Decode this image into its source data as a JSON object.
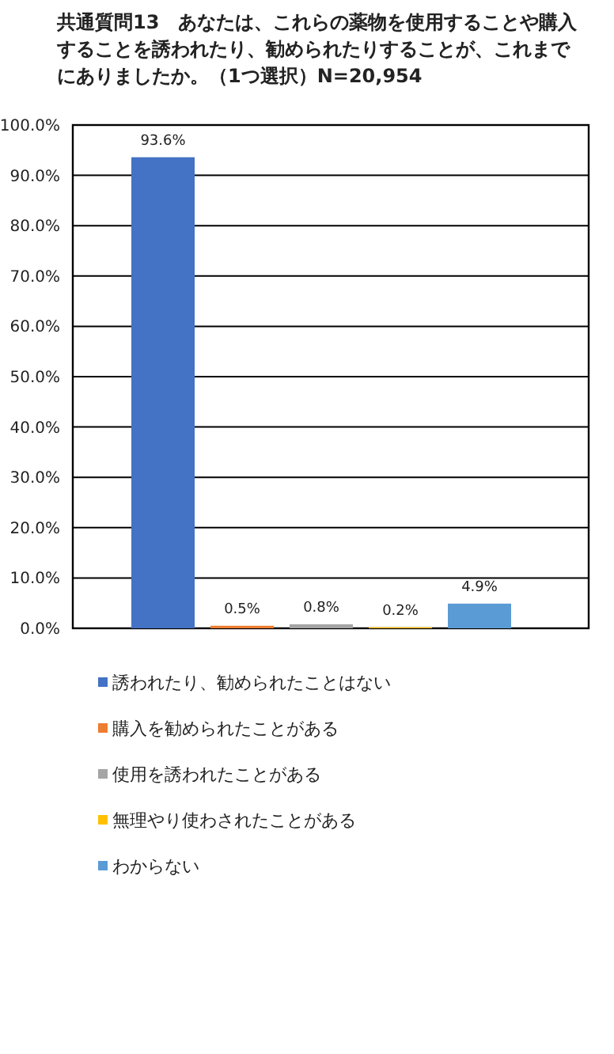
{
  "chart_data": {
    "type": "bar",
    "title": "共通質問13　あなたは、これらの薬物を使用することや購入することを誘われたり、勧められたりすることが、これまでにありましたか。（1つ選択）N=20,954",
    "categories": [
      null
    ],
    "series": [
      {
        "name": "誘われたり、勧められたことはない",
        "color": "#4472c4",
        "values": [
          93.6
        ]
      },
      {
        "name": "購入を勧められたことがある",
        "color": "#ed7d31",
        "values": [
          0.5
        ]
      },
      {
        "name": "使用を誘われたことがある",
        "color": "#a5a5a5",
        "values": [
          0.8
        ]
      },
      {
        "name": "無理やり使わされたことがある",
        "color": "#ffc000",
        "values": [
          0.2
        ]
      },
      {
        "name": "わからない",
        "color": "#5b9bd5",
        "values": [
          4.9
        ]
      }
    ],
    "ylim": [
      0,
      100
    ],
    "yticks": [
      {
        "value": 0,
        "label": "0.0%"
      },
      {
        "value": 10,
        "label": "10.0%"
      },
      {
        "value": 20,
        "label": "20.0%"
      },
      {
        "value": 30,
        "label": "30.0%"
      },
      {
        "value": 40,
        "label": "40.0%"
      },
      {
        "value": 50,
        "label": "50.0%"
      },
      {
        "value": 60,
        "label": "60.0%"
      },
      {
        "value": 70,
        "label": "70.0%"
      },
      {
        "value": 80,
        "label": "80.0%"
      },
      {
        "value": 90,
        "label": "90.0%"
      },
      {
        "value": 100,
        "label": "100.0%"
      }
    ],
    "value_labels": [
      "93.6%",
      "0.5%",
      "0.8%",
      "0.2%",
      "4.9%"
    ],
    "grid": "y",
    "legend": "bottom"
  }
}
